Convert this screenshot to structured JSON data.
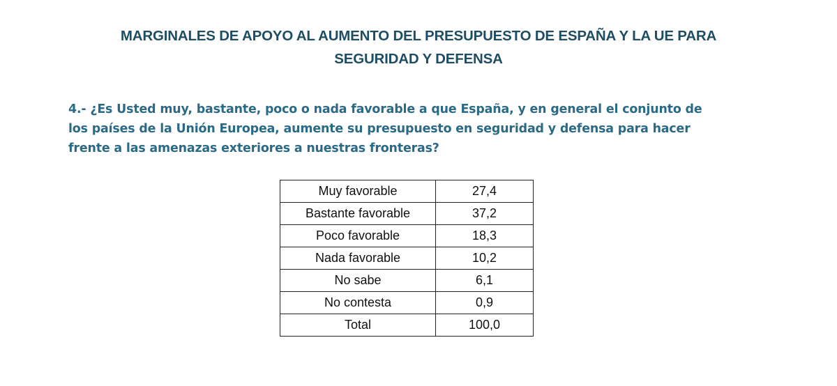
{
  "document": {
    "title_line1": "MARGINALES DE APOYO AL AUMENTO DEL PRESUPUESTO DE ESPAÑA Y LA UE PARA",
    "title_line2": "SEGURIDAD Y DEFENSA",
    "question_line1": "4.- ¿Es Usted muy, bastante, poco o nada favorable a que España, y en general el conjunto de",
    "question_line2": "los países de la Unión Europea, aumente su presupuesto en seguridad y defensa para hacer",
    "question_line3": "frente a las amenazas exteriores a nuestras fronteras?"
  },
  "table": {
    "rows": [
      {
        "label": "Muy favorable",
        "value": "27,4"
      },
      {
        "label": "Bastante favorable",
        "value": "37,2"
      },
      {
        "label": "Poco favorable",
        "value": "18,3"
      },
      {
        "label": "Nada favorable",
        "value": "10,2"
      },
      {
        "label": "No sabe",
        "value": "6,1"
      },
      {
        "label": "No contesta",
        "value": "0,9"
      },
      {
        "label": "Total",
        "value": "100,0"
      }
    ]
  },
  "colors": {
    "title": "#1f4e64",
    "question": "#2b6a86",
    "table_text": "#111111",
    "table_border": "#222222"
  }
}
